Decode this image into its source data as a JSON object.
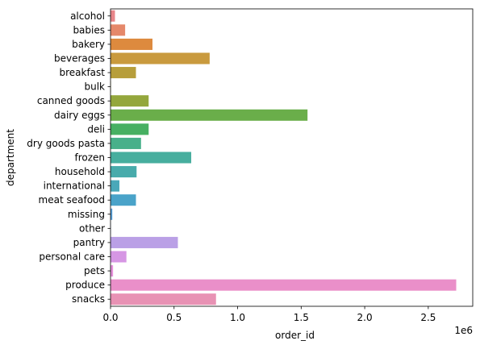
{
  "chart_data": {
    "type": "bar",
    "orientation": "horizontal",
    "categories": [
      "alcohol",
      "babies",
      "bakery",
      "beverages",
      "breakfast",
      "bulk",
      "canned goods",
      "dairy eggs",
      "deli",
      "dry goods pasta",
      "frozen",
      "household",
      "international",
      "meat seafood",
      "missing",
      "other",
      "pantry",
      "personal care",
      "pets",
      "produce",
      "snacks"
    ],
    "values": [
      35000,
      115000,
      330000,
      780000,
      200000,
      3000,
      300000,
      1550000,
      300000,
      240000,
      635000,
      205000,
      70000,
      200000,
      14000,
      2000,
      530000,
      125000,
      20000,
      2720000,
      830000
    ],
    "colors": [
      "#e8868a",
      "#e5886a",
      "#dd8a3e",
      "#c99a3e",
      "#b79e3b",
      "#a6a23a",
      "#94a73c",
      "#6aae4a",
      "#47b062",
      "#48b08a",
      "#47ae9e",
      "#48abab",
      "#4aa8b9",
      "#4aa3c9",
      "#55a0da",
      "#8ea6e0",
      "#baa0e6",
      "#d696e4",
      "#e591da",
      "#ea8fc9",
      "#e892b4"
    ],
    "xlabel": "order_id",
    "ylabel": "department",
    "x_offset_label": "1e6",
    "xlim": [
      0,
      2850000
    ],
    "xticks": [
      0,
      500000,
      1000000,
      1500000,
      2000000,
      2500000
    ],
    "xtick_labels": [
      "0.0",
      "0.5",
      "1.0",
      "1.5",
      "2.0",
      "2.5"
    ],
    "grid": false,
    "legend": "none"
  }
}
